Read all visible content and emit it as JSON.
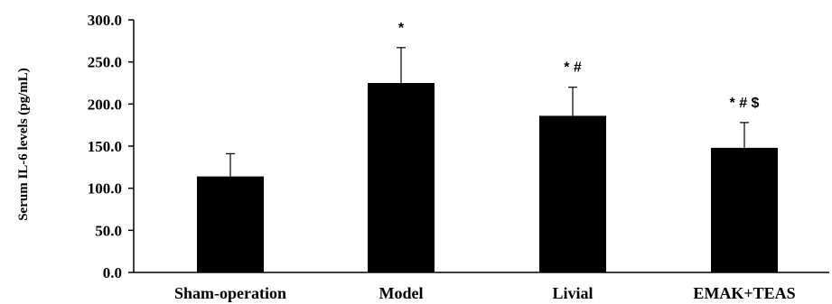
{
  "chart_data": {
    "type": "bar",
    "categories": [
      "Sham-operation",
      "Model",
      "Livial",
      "EMAK+TEAS"
    ],
    "values": [
      114,
      225,
      186,
      148
    ],
    "errors": [
      27,
      42,
      34,
      30
    ],
    "annotations": [
      "",
      "*",
      "* #",
      "* # $"
    ],
    "ylabel": "Serum IL-6 levels (pg/mL)",
    "yticks": [
      "0.0",
      "50.0",
      "100.0",
      "150.0",
      "200.0",
      "250.0",
      "300.0"
    ],
    "ylim": [
      0,
      300
    ],
    "bar_color": "#000000",
    "grid": false
  }
}
